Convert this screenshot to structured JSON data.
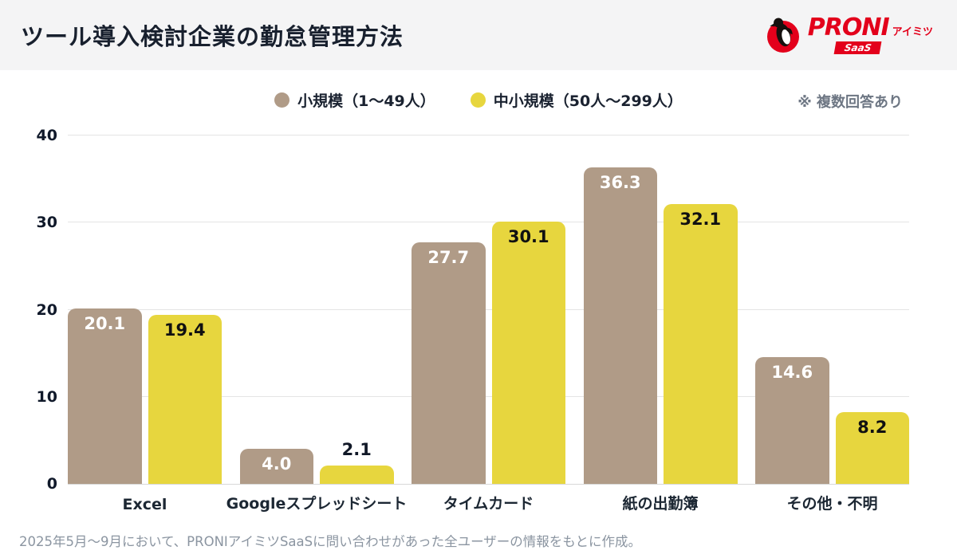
{
  "header": {
    "title": "ツール導入検討企業の勤怠管理方法",
    "logo": {
      "brand": "PRONI",
      "sub": "アイミツ",
      "badge": "SaaS",
      "brand_color": "#e3001b"
    }
  },
  "legend": {
    "items": [
      {
        "label": "小規模（1〜49人）",
        "color": "#b09b87"
      },
      {
        "label": "中小規模（50人〜299人）",
        "color": "#e7d63e"
      }
    ],
    "note": "※ 複数回答あり"
  },
  "chart_data": {
    "type": "bar",
    "title": "ツール導入検討企業の勤怠管理方法",
    "categories": [
      "Excel",
      "Googleスプレッドシート",
      "タイムカード",
      "紙の出勤簿",
      "その他・不明"
    ],
    "series": [
      {
        "name": "小規模（1〜49人）",
        "color": "#b09b87",
        "label_color": "#ffffff",
        "values": [
          20.1,
          4.0,
          27.7,
          36.3,
          14.6
        ]
      },
      {
        "name": "中小規模（50人〜299人）",
        "color": "#e7d63e",
        "label_color": "#111111",
        "values": [
          19.4,
          2.1,
          30.1,
          32.1,
          8.2
        ]
      }
    ],
    "xlabel": "",
    "ylabel": "",
    "ylim": [
      0,
      40
    ],
    "yticks": [
      0,
      10,
      20,
      30,
      40
    ],
    "grid": true,
    "legend_position": "top"
  },
  "footer": {
    "source": "2025年5月〜9月において、PRONIアイミツSaaSに問い合わせがあった全ユーザーの情報をもとに作成。"
  }
}
